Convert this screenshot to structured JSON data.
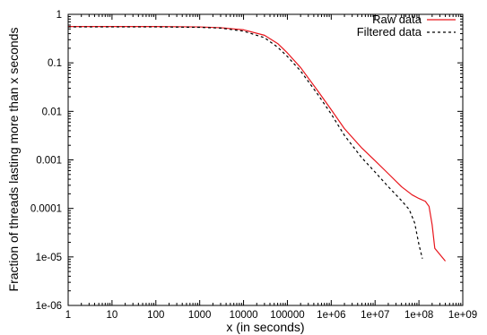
{
  "chart_data": {
    "type": "line",
    "xlabel": "x (in seconds)",
    "ylabel": "Fraction of threads lasting more than x seconds",
    "x_scale": "log",
    "y_scale": "log",
    "xlim": [
      1,
      1000000000
    ],
    "ylim": [
      1e-06,
      1
    ],
    "x_ticks": [
      {
        "value": 1,
        "label": "1"
      },
      {
        "value": 10,
        "label": "10"
      },
      {
        "value": 100,
        "label": "100"
      },
      {
        "value": 1000,
        "label": "1000"
      },
      {
        "value": 10000,
        "label": "10000"
      },
      {
        "value": 100000,
        "label": "100000"
      },
      {
        "value": 1000000,
        "label": "1e+06"
      },
      {
        "value": 10000000,
        "label": "1e+07"
      },
      {
        "value": 100000000,
        "label": "1e+08"
      },
      {
        "value": 1000000000,
        "label": "1e+09"
      }
    ],
    "y_ticks": [
      {
        "value": 1,
        "label": "1"
      },
      {
        "value": 0.1,
        "label": "0.1"
      },
      {
        "value": 0.01,
        "label": "0.01"
      },
      {
        "value": 0.001,
        "label": "0.001"
      },
      {
        "value": 0.0001,
        "label": "0.0001"
      },
      {
        "value": 1e-05,
        "label": "1e-05"
      },
      {
        "value": 1e-06,
        "label": "1e-06"
      }
    ],
    "grid": false,
    "legend_position": "top-right",
    "series": [
      {
        "name": "Raw data",
        "color": "#e8141b",
        "dash": "solid",
        "points": [
          [
            1,
            0.56
          ],
          [
            10,
            0.56
          ],
          [
            100,
            0.56
          ],
          [
            1000,
            0.55
          ],
          [
            3000,
            0.53
          ],
          [
            10000,
            0.48
          ],
          [
            30000,
            0.37
          ],
          [
            60000,
            0.25
          ],
          [
            100000,
            0.16
          ],
          [
            200000,
            0.08
          ],
          [
            500000,
            0.026
          ],
          [
            1000000,
            0.0108
          ],
          [
            2000000,
            0.0044
          ],
          [
            5000000,
            0.00175
          ],
          [
            10000000,
            0.00096
          ],
          [
            20000000,
            0.00052
          ],
          [
            40000000,
            0.00028
          ],
          [
            70000000,
            0.00019
          ],
          [
            100000000,
            0.00016
          ],
          [
            140000000,
            0.00014
          ],
          [
            170000000,
            0.00011
          ],
          [
            200000000,
            4.6e-05
          ],
          [
            230000000,
            1.5e-05
          ],
          [
            400000000,
            8.2e-06
          ]
        ]
      },
      {
        "name": "Filtered data",
        "color": "#000000",
        "dash": "dashed",
        "points": [
          [
            1,
            0.55
          ],
          [
            10,
            0.55
          ],
          [
            100,
            0.55
          ],
          [
            1000,
            0.54
          ],
          [
            3000,
            0.52
          ],
          [
            10000,
            0.45
          ],
          [
            30000,
            0.33
          ],
          [
            60000,
            0.21
          ],
          [
            100000,
            0.135
          ],
          [
            200000,
            0.068
          ],
          [
            500000,
            0.022
          ],
          [
            1000000,
            0.0088
          ],
          [
            2000000,
            0.0032
          ],
          [
            5000000,
            0.0011
          ],
          [
            10000000,
            0.00056
          ],
          [
            20000000,
            0.00028
          ],
          [
            40000000,
            0.000145
          ],
          [
            60000000,
            9.5e-05
          ],
          [
            80000000,
            5e-05
          ],
          [
            100000000,
            1.8e-05
          ],
          [
            120000000,
            9.2e-06
          ]
        ]
      }
    ]
  }
}
